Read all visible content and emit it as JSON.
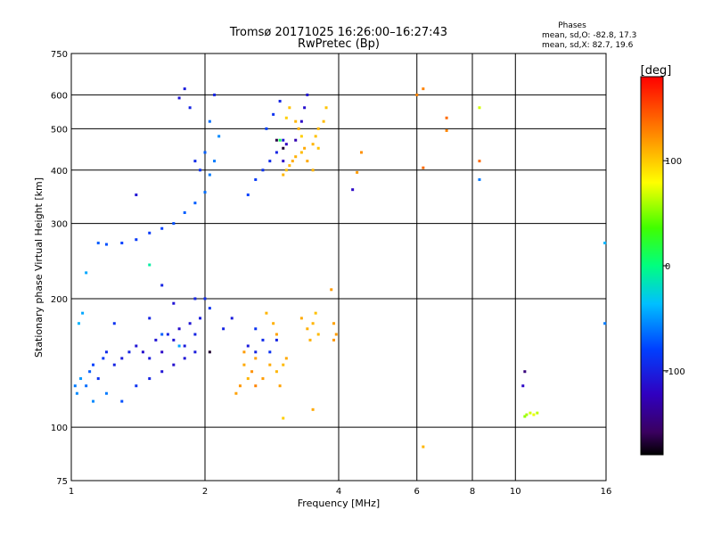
{
  "chart_data": {
    "type": "scatter",
    "title": "Tromsø 20171025 16:26:00–16:27:43",
    "subtitle": "RwPretec (Bp)",
    "phases": {
      "heading": "Phases",
      "line1": "mean, sd,O: -82.8, 17.3",
      "line2": "mean, sd,X: 82.7, 19.6"
    },
    "xlabel": "Frequency [MHz]",
    "ylabel": "Stationary phase Virtual Height [km]",
    "xscale": "log",
    "yscale": "log",
    "xlim": [
      1,
      16
    ],
    "ylim": [
      75,
      750
    ],
    "xticks": [
      1,
      2,
      4,
      6,
      8,
      10,
      16
    ],
    "yticks": [
      75,
      100,
      200,
      300,
      400,
      500,
      600,
      750
    ],
    "x_gridlines": [
      2,
      4,
      6,
      8,
      10
    ],
    "y_gridlines": [
      100,
      200,
      300,
      400,
      500,
      600
    ],
    "grid": true,
    "colorbar": {
      "label": "[deg]",
      "range": [
        -180,
        180
      ],
      "ticks": [
        100,
        0,
        -100
      ],
      "scale": "rainbow (black-purple-blue-cyan-green-yellow-orange-red)"
    },
    "series": [
      {
        "points": [
          [
            1.02,
            125,
            -60
          ],
          [
            1.03,
            120,
            -55
          ],
          [
            1.05,
            130,
            -50
          ],
          [
            1.08,
            125,
            -65
          ],
          [
            1.1,
            135,
            -70
          ],
          [
            1.12,
            140,
            -80
          ],
          [
            1.15,
            130,
            -90
          ],
          [
            1.18,
            145,
            -85
          ],
          [
            1.2,
            150,
            -95
          ],
          [
            1.25,
            140,
            -100
          ],
          [
            1.3,
            145,
            -105
          ],
          [
            1.35,
            150,
            -100
          ],
          [
            1.4,
            155,
            -110
          ],
          [
            1.45,
            150,
            -115
          ],
          [
            1.5,
            145,
            -105
          ],
          [
            1.55,
            160,
            -110
          ],
          [
            1.6,
            150,
            -120
          ],
          [
            1.65,
            165,
            -100
          ],
          [
            1.7,
            160,
            -110
          ],
          [
            1.75,
            170,
            -115
          ],
          [
            1.8,
            155,
            -105
          ],
          [
            1.85,
            175,
            -110
          ],
          [
            1.9,
            165,
            -100
          ],
          [
            1.95,
            180,
            -105
          ],
          [
            2.0,
            200,
            -95
          ],
          [
            2.05,
            190,
            -90
          ],
          [
            1.04,
            175,
            -40
          ],
          [
            1.06,
            185,
            -45
          ],
          [
            1.08,
            230,
            -45
          ],
          [
            1.12,
            115,
            -55
          ],
          [
            1.2,
            120,
            -60
          ],
          [
            1.3,
            115,
            -75
          ],
          [
            1.4,
            125,
            -90
          ],
          [
            1.5,
            130,
            -100
          ],
          [
            1.6,
            135,
            -110
          ],
          [
            1.7,
            140,
            -115
          ],
          [
            1.8,
            145,
            -110
          ],
          [
            1.9,
            150,
            -105
          ],
          [
            1.25,
            175,
            -90
          ],
          [
            1.5,
            180,
            -100
          ],
          [
            1.7,
            195,
            -110
          ],
          [
            1.9,
            200,
            -100
          ],
          [
            1.15,
            270,
            -70
          ],
          [
            1.2,
            268,
            -75
          ],
          [
            1.3,
            270,
            -80
          ],
          [
            1.4,
            275,
            -85
          ],
          [
            1.5,
            285,
            -85
          ],
          [
            1.6,
            292,
            -80
          ],
          [
            1.7,
            300,
            -75
          ],
          [
            1.8,
            318,
            -70
          ],
          [
            1.9,
            335,
            -70
          ],
          [
            2.0,
            355,
            -65
          ],
          [
            2.05,
            390,
            -60
          ],
          [
            2.1,
            420,
            -60
          ],
          [
            2.15,
            480,
            -55
          ],
          [
            2.0,
            440,
            -70
          ],
          [
            2.05,
            520,
            -65
          ],
          [
            1.95,
            400,
            -90
          ],
          [
            1.9,
            420,
            -95
          ],
          [
            1.85,
            560,
            -100
          ],
          [
            1.8,
            620,
            -105
          ],
          [
            1.75,
            590,
            -110
          ],
          [
            2.1,
            600,
            -100
          ],
          [
            2.5,
            350,
            -80
          ],
          [
            2.6,
            380,
            -85
          ],
          [
            2.7,
            400,
            -90
          ],
          [
            2.8,
            420,
            -95
          ],
          [
            2.9,
            440,
            -100
          ],
          [
            3.0,
            470,
            -110
          ],
          [
            2.75,
            500,
            -80
          ],
          [
            2.85,
            540,
            -90
          ],
          [
            2.95,
            580,
            -100
          ],
          [
            3.0,
            420,
            -120
          ],
          [
            3.05,
            460,
            -125
          ],
          [
            3.2,
            470,
            -130
          ],
          [
            3.3,
            520,
            -120
          ],
          [
            3.35,
            560,
            -115
          ],
          [
            3.4,
            600,
            -110
          ],
          [
            2.5,
            155,
            -105
          ],
          [
            2.6,
            150,
            -100
          ],
          [
            2.7,
            160,
            -95
          ],
          [
            2.8,
            150,
            -90
          ],
          [
            2.9,
            160,
            -100
          ],
          [
            2.2,
            170,
            -100
          ],
          [
            2.3,
            180,
            -105
          ],
          [
            2.6,
            170,
            -90
          ],
          [
            1.6,
            165,
            -70
          ],
          [
            1.75,
            155,
            -45
          ],
          [
            1.5,
            240,
            -10
          ],
          [
            1.6,
            215,
            -100
          ],
          [
            1.4,
            350,
            -110
          ],
          [
            4.3,
            360,
            -120
          ],
          [
            10.5,
            135,
            -150
          ],
          [
            10.4,
            125,
            -120
          ],
          [
            8.3,
            380,
            -60
          ],
          [
            15.9,
            270,
            -40
          ],
          [
            15.9,
            175,
            -60
          ]
        ]
      },
      {
        "points": [
          [
            3.0,
            390,
            110
          ],
          [
            3.05,
            400,
            105
          ],
          [
            3.1,
            410,
            110
          ],
          [
            3.15,
            420,
            115
          ],
          [
            3.2,
            430,
            112
          ],
          [
            3.3,
            440,
            108
          ],
          [
            3.35,
            450,
            115
          ],
          [
            3.5,
            460,
            110
          ],
          [
            3.55,
            480,
            105
          ],
          [
            3.6,
            500,
            108
          ],
          [
            3.3,
            480,
            100
          ],
          [
            3.2,
            520,
            110
          ],
          [
            3.1,
            560,
            105
          ],
          [
            3.05,
            530,
            100
          ],
          [
            3.25,
            500,
            112
          ],
          [
            3.6,
            450,
            105
          ],
          [
            3.7,
            520,
            108
          ],
          [
            3.75,
            560,
            104
          ],
          [
            3.4,
            420,
            115
          ],
          [
            3.5,
            400,
            110
          ],
          [
            3.3,
            180,
            115
          ],
          [
            3.4,
            170,
            112
          ],
          [
            3.5,
            175,
            110
          ],
          [
            3.6,
            165,
            108
          ],
          [
            3.45,
            160,
            112
          ],
          [
            3.55,
            185,
            105
          ],
          [
            3.9,
            175,
            118
          ],
          [
            3.95,
            165,
            120
          ],
          [
            3.85,
            210,
            120
          ],
          [
            3.9,
            160,
            122
          ],
          [
            2.45,
            140,
            115
          ],
          [
            2.5,
            130,
            110
          ],
          [
            2.55,
            135,
            125
          ],
          [
            2.6,
            145,
            118
          ],
          [
            2.7,
            130,
            120
          ],
          [
            2.8,
            140,
            115
          ],
          [
            2.9,
            135,
            110
          ],
          [
            3.0,
            140,
            108
          ],
          [
            3.05,
            145,
            115
          ],
          [
            2.95,
            125,
            118
          ],
          [
            2.75,
            185,
            110
          ],
          [
            2.85,
            175,
            112
          ],
          [
            2.9,
            165,
            118
          ],
          [
            2.45,
            150,
            120
          ],
          [
            2.4,
            125,
            122
          ],
          [
            2.35,
            120,
            118
          ],
          [
            2.6,
            125,
            130
          ],
          [
            3.0,
            105,
            100
          ],
          [
            3.5,
            110,
            115
          ],
          [
            4.4,
            395,
            120
          ],
          [
            4.5,
            440,
            125
          ],
          [
            6.0,
            600,
            130
          ],
          [
            6.2,
            620,
            130
          ],
          [
            6.2,
            90,
            110
          ],
          [
            7.0,
            530,
            140
          ],
          [
            7.0,
            495,
            130
          ],
          [
            8.3,
            560,
            70
          ],
          [
            8.3,
            420,
            140
          ],
          [
            6.2,
            405,
            140
          ],
          [
            10.6,
            107,
            60
          ],
          [
            10.8,
            108,
            70
          ],
          [
            11.0,
            107,
            75
          ],
          [
            10.5,
            106,
            55
          ],
          [
            11.2,
            108,
            65
          ],
          [
            2.05,
            150,
            -170
          ],
          [
            3.0,
            450,
            -170
          ],
          [
            2.9,
            470,
            -165
          ],
          [
            2.95,
            470,
            10
          ]
        ]
      }
    ]
  }
}
